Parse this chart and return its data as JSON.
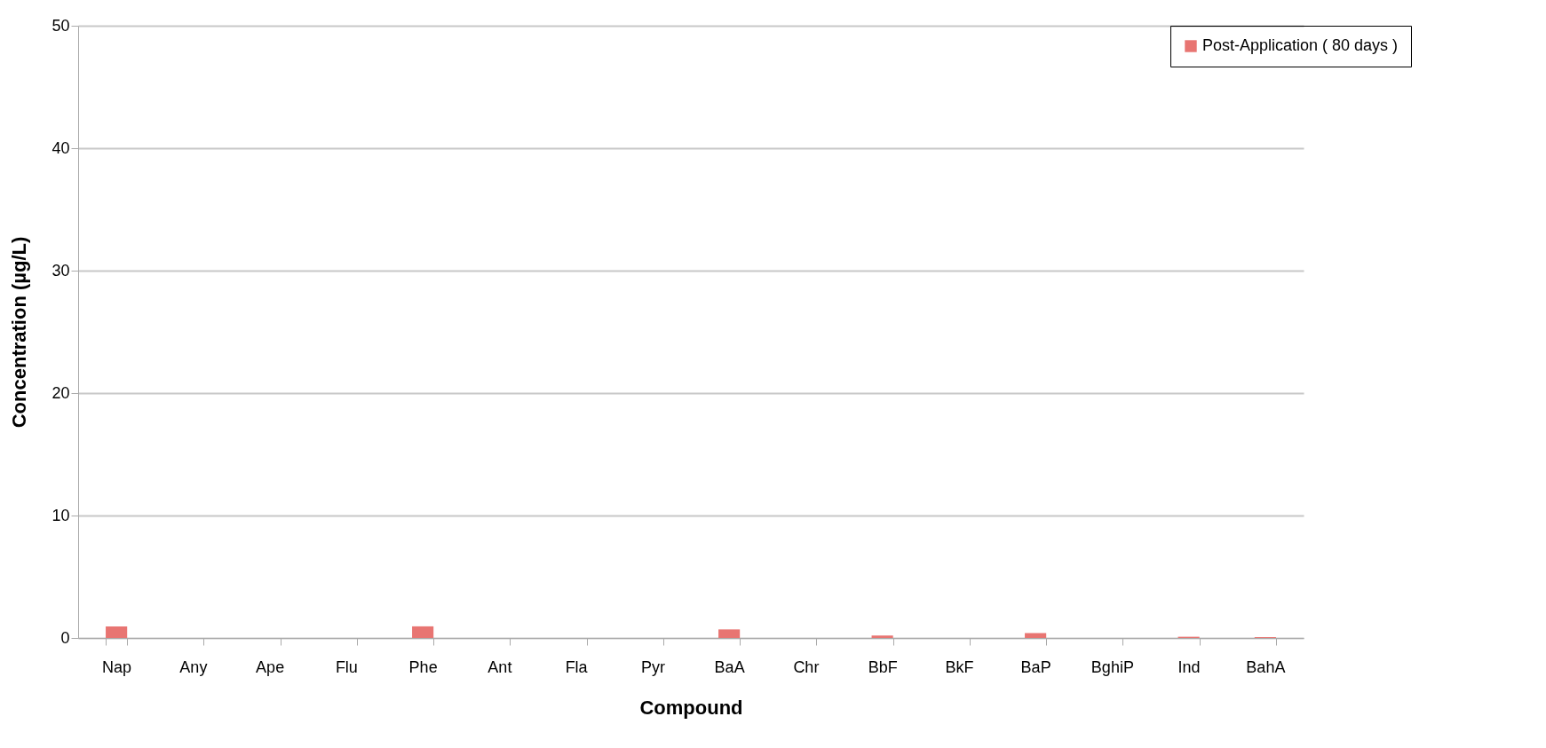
{
  "chart_data": {
    "type": "bar",
    "xlabel": "Compound",
    "ylabel": "Concentration (µg/L)",
    "categories": [
      "Nap",
      "Any",
      "Ape",
      "Flu",
      "Phe",
      "Ant",
      "Fla",
      "Pyr",
      "BaA",
      "Chr",
      "BbF",
      "BkF",
      "BaP",
      "BghiP",
      "Ind",
      "BahA"
    ],
    "series": [
      {
        "name": "Post-Application ( 80 days )",
        "color": "#e87572",
        "values": [
          0.95,
          0,
          0,
          0,
          0.95,
          0,
          0,
          0,
          0.7,
          0,
          0.2,
          0,
          0.4,
          0,
          0.1,
          0.07
        ]
      }
    ],
    "ylim": [
      0,
      50
    ],
    "yticks": [
      0,
      10,
      20,
      30,
      40,
      50
    ],
    "grid": "y",
    "legend": "right"
  }
}
